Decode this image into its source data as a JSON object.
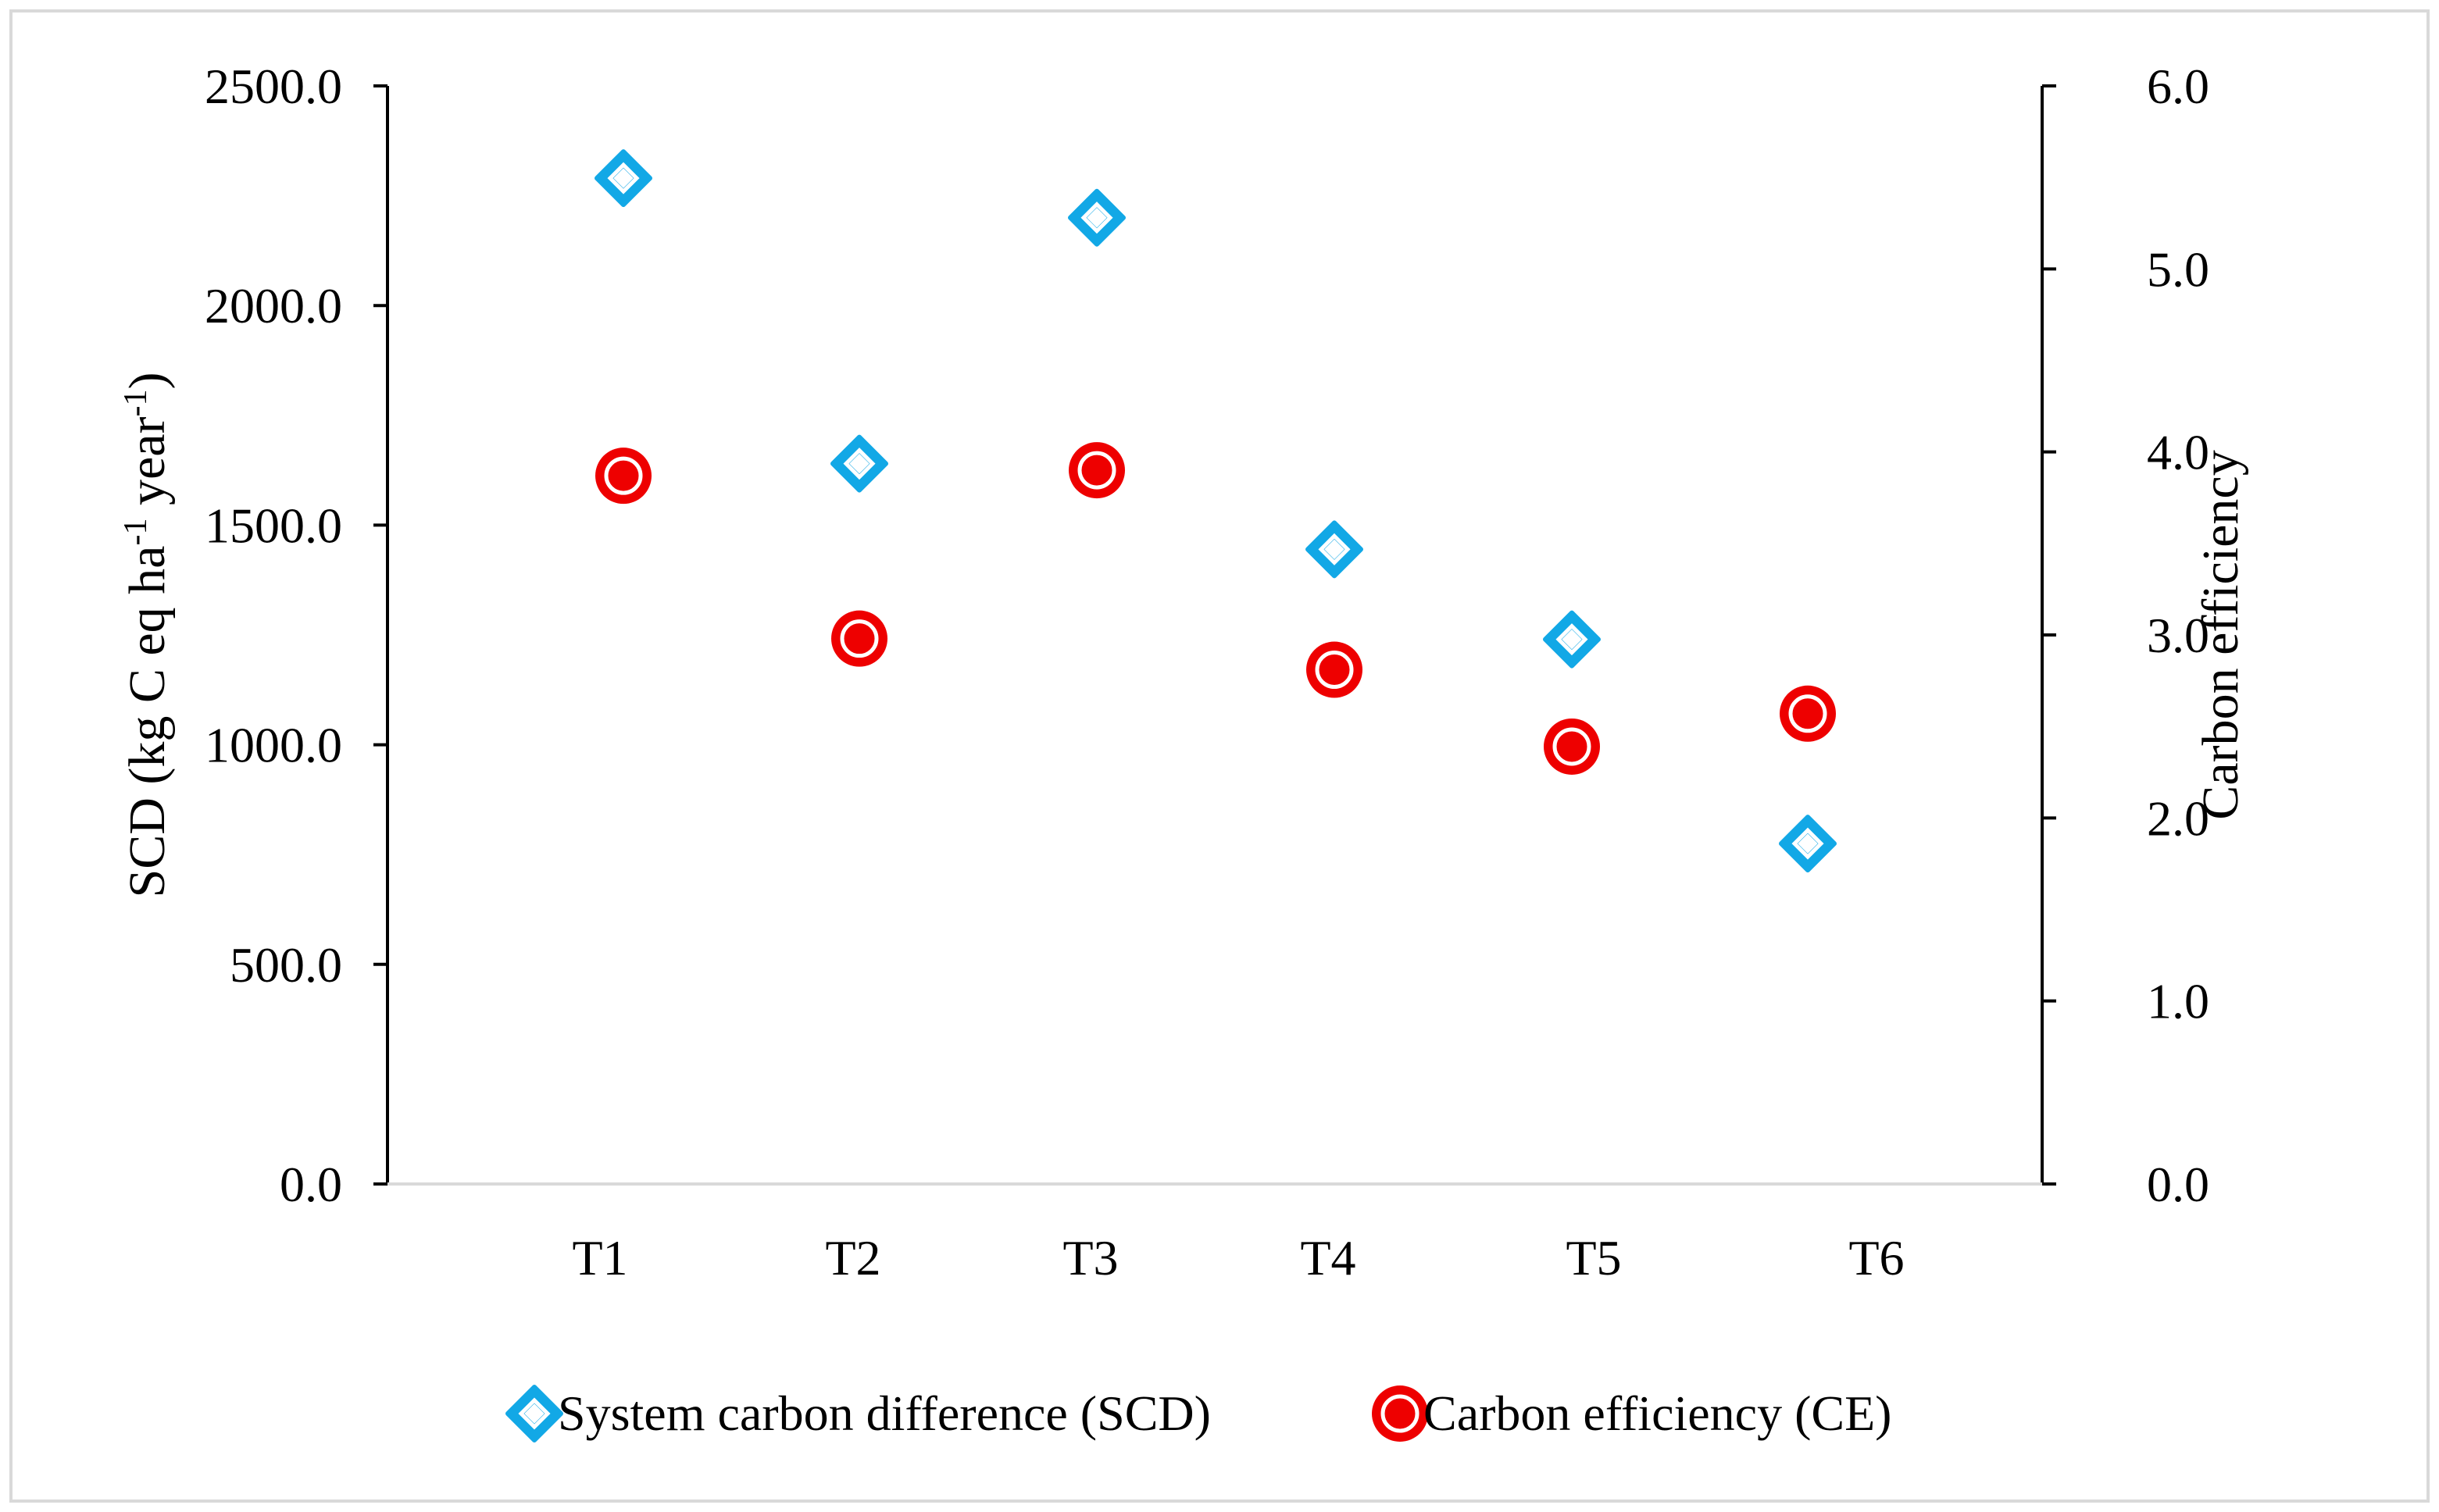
{
  "chart_data": {
    "type": "scatter",
    "categories": [
      "T1",
      "T2",
      "T3",
      "T4",
      "T5",
      "T6"
    ],
    "series": [
      {
        "name": "System carbon difference (SCD)",
        "axis": "left",
        "marker": "diamond",
        "color": "#12a8e6",
        "values": [
          2290,
          1640,
          2200,
          1445,
          1240,
          775
        ]
      },
      {
        "name": "Carbon efficiency (CE)",
        "axis": "right",
        "marker": "circle",
        "color": "#ee0000",
        "values": [
          3.87,
          2.98,
          3.9,
          2.81,
          2.39,
          2.57
        ]
      }
    ],
    "y_left": {
      "label_main": "SCD (kg C eq ha",
      "label_sup1": "-1",
      "label_mid": " year",
      "label_sup2": "-1",
      "label_end": ")",
      "ylim": [
        0,
        2500
      ],
      "ticks": [
        "0.0",
        "500.0",
        "1000.0",
        "1500.0",
        "2000.0",
        "2500.0"
      ]
    },
    "y_right": {
      "label": "Carbon efficiency",
      "ylim": [
        0,
        6
      ],
      "ticks": [
        "0.0",
        "1.0",
        "2.0",
        "3.0",
        "4.0",
        "5.0",
        "6.0"
      ]
    },
    "grid": false,
    "legend_position": "bottom-center"
  }
}
